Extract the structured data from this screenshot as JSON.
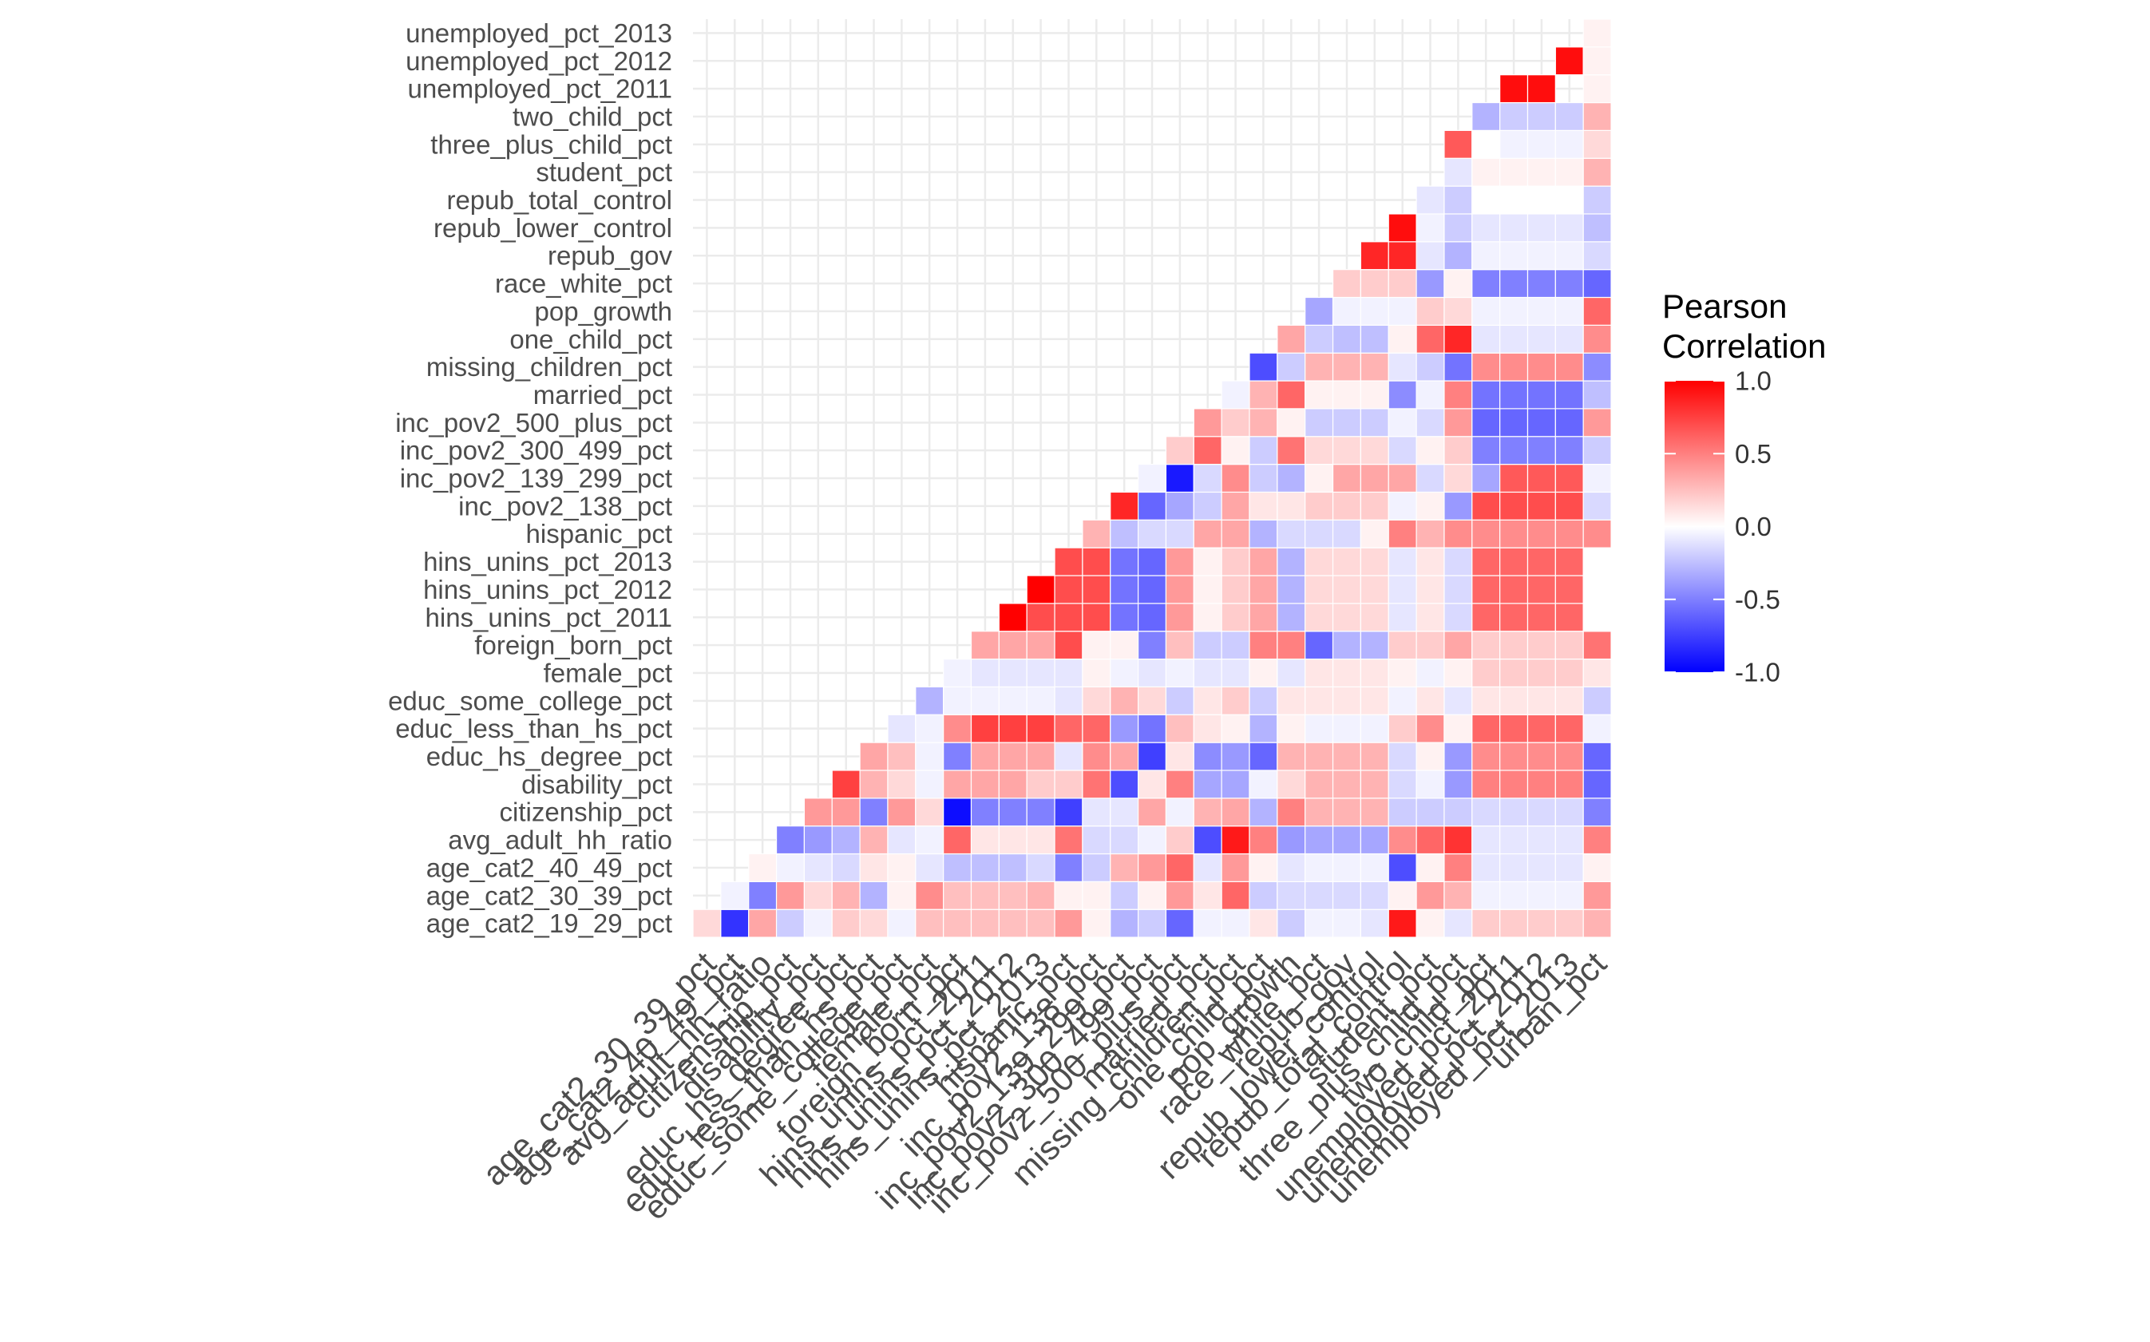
{
  "chart_data": {
    "type": "heatmap",
    "title": "",
    "xlabel": "",
    "ylabel": "",
    "triangle": "lower",
    "x_categories": [
      "age_cat2_30_39_pct",
      "age_cat2_40_49_pct",
      "avg_adult_hh_ratio",
      "citizenship_pct",
      "disability_pct",
      "educ_hs_degree_pct",
      "educ_less_than_hs_pct",
      "educ_some_college_pct",
      "female_pct",
      "foreign_born_pct",
      "hins_unins_pct_2011",
      "hins_unins_pct_2012",
      "hins_unins_pct_2013",
      "hispanic_pct",
      "inc_pov2_138_pct",
      "inc_pov2_139_299_pct",
      "inc_pov2_300_499_pct",
      "inc_pov2_500_plus_pct",
      "married_pct",
      "missing_children_pct",
      "one_child_pct",
      "pop_growth",
      "race_white_pct",
      "repub_gov",
      "repub_lower_control",
      "repub_total_control",
      "student_pct",
      "three_plus_child_pct",
      "two_child_pct",
      "unemployed_pct_2011",
      "unemployed_pct_2012",
      "unemployed_pct_2013",
      "urban_pct"
    ],
    "y_categories": [
      "age_cat2_19_29_pct",
      "age_cat2_30_39_pct",
      "age_cat2_40_49_pct",
      "avg_adult_hh_ratio",
      "citizenship_pct",
      "disability_pct",
      "educ_hs_degree_pct",
      "educ_less_than_hs_pct",
      "educ_some_college_pct",
      "female_pct",
      "foreign_born_pct",
      "hins_unins_pct_2011",
      "hins_unins_pct_2012",
      "hins_unins_pct_2013",
      "hispanic_pct",
      "inc_pov2_138_pct",
      "inc_pov2_139_299_pct",
      "inc_pov2_300_499_pct",
      "inc_pov2_500_plus_pct",
      "married_pct",
      "missing_children_pct",
      "one_child_pct",
      "pop_growth",
      "race_white_pct",
      "repub_gov",
      "repub_lower_control",
      "repub_total_control",
      "student_pct",
      "three_plus_child_pct",
      "two_child_pct",
      "unemployed_pct_2011",
      "unemployed_pct_2012",
      "unemployed_pct_2013"
    ],
    "values": [
      [
        0.15,
        -0.8,
        0.35,
        -0.2,
        -0.05,
        0.2,
        0.15,
        -0.05,
        0.25,
        0.25,
        0.25,
        0.25,
        0.25,
        0.4,
        0.05,
        -0.3,
        -0.2,
        -0.6,
        -0.05,
        -0.05,
        0.1,
        -0.2,
        -0.05,
        -0.05,
        -0.1,
        0.9,
        0.05,
        -0.1,
        0.2,
        0.2,
        0.2,
        0.2,
        0.3
      ],
      [
        null,
        -0.05,
        -0.5,
        0.4,
        0.15,
        0.3,
        -0.3,
        0.05,
        0.45,
        0.25,
        0.25,
        0.25,
        0.3,
        0.05,
        0.05,
        -0.2,
        0.05,
        0.4,
        0.1,
        0.6,
        -0.2,
        -0.15,
        -0.15,
        -0.15,
        -0.15,
        0.05,
        0.4,
        0.3,
        -0.05,
        -0.05,
        -0.05,
        -0.05,
        0.4
      ],
      [
        null,
        null,
        0.05,
        -0.05,
        -0.1,
        -0.15,
        0.1,
        0.05,
        -0.1,
        -0.25,
        -0.25,
        -0.25,
        -0.15,
        -0.5,
        -0.2,
        0.3,
        0.4,
        0.6,
        -0.1,
        0.4,
        0.05,
        -0.1,
        -0.05,
        -0.05,
        -0.05,
        -0.7,
        0.05,
        0.5,
        -0.1,
        -0.1,
        -0.1,
        -0.1,
        0.05
      ],
      [
        null,
        null,
        null,
        -0.5,
        -0.4,
        -0.3,
        0.3,
        -0.1,
        -0.05,
        0.6,
        0.1,
        0.1,
        0.1,
        0.55,
        -0.15,
        -0.15,
        -0.05,
        0.2,
        -0.7,
        0.9,
        0.5,
        -0.4,
        -0.35,
        -0.35,
        -0.35,
        0.45,
        0.6,
        0.8,
        -0.1,
        -0.1,
        -0.1,
        -0.1,
        0.5
      ],
      [
        null,
        null,
        null,
        null,
        0.4,
        0.4,
        -0.5,
        0.4,
        0.15,
        -0.95,
        -0.5,
        -0.5,
        -0.5,
        -0.75,
        -0.1,
        -0.1,
        0.35,
        -0.05,
        0.3,
        0.35,
        -0.3,
        0.5,
        0.3,
        0.3,
        0.3,
        -0.2,
        -0.2,
        -0.2,
        -0.15,
        -0.15,
        -0.15,
        -0.15,
        -0.5
      ],
      [
        null,
        null,
        null,
        null,
        null,
        0.75,
        0.3,
        0.15,
        -0.05,
        0.35,
        0.35,
        0.35,
        0.2,
        0.2,
        0.55,
        -0.7,
        0.1,
        0.5,
        -0.35,
        -0.35,
        -0.05,
        0.15,
        0.3,
        0.3,
        0.3,
        -0.15,
        -0.05,
        -0.4,
        0.5,
        0.5,
        0.5,
        0.5,
        -0.6
      ],
      [
        null,
        null,
        null,
        null,
        null,
        null,
        0.35,
        0.25,
        -0.05,
        -0.5,
        0.35,
        0.35,
        0.35,
        -0.1,
        0.45,
        0.35,
        -0.75,
        0.1,
        -0.45,
        -0.4,
        -0.6,
        0.3,
        0.3,
        0.3,
        0.3,
        -0.15,
        0.05,
        -0.4,
        0.45,
        0.45,
        0.45,
        0.45,
        -0.6
      ],
      [
        null,
        null,
        null,
        null,
        null,
        null,
        null,
        -0.1,
        -0.05,
        0.45,
        0.75,
        0.75,
        0.75,
        0.6,
        0.6,
        -0.4,
        -0.55,
        0.25,
        0.1,
        0.05,
        -0.3,
        0.05,
        -0.05,
        -0.05,
        -0.05,
        0.2,
        0.45,
        0.05,
        0.6,
        0.6,
        0.6,
        0.6,
        -0.05
      ],
      [
        null,
        null,
        null,
        null,
        null,
        null,
        null,
        null,
        -0.3,
        -0.05,
        -0.05,
        -0.05,
        -0.05,
        -0.1,
        0.15,
        0.3,
        0.15,
        -0.2,
        0.1,
        0.2,
        -0.2,
        0.1,
        0.1,
        0.1,
        0.1,
        -0.05,
        0.1,
        -0.1,
        0.1,
        0.1,
        0.1,
        0.1,
        -0.2
      ],
      [
        null,
        null,
        null,
        null,
        null,
        null,
        null,
        null,
        null,
        -0.05,
        -0.1,
        -0.1,
        -0.1,
        -0.1,
        0.05,
        -0.05,
        -0.1,
        -0.05,
        -0.1,
        -0.1,
        0.05,
        -0.1,
        0.1,
        0.1,
        0.1,
        0.05,
        -0.05,
        0.05,
        0.2,
        0.2,
        0.2,
        0.2,
        0.1
      ],
      [
        null,
        null,
        null,
        null,
        null,
        null,
        null,
        null,
        null,
        null,
        0.35,
        0.35,
        0.35,
        0.7,
        0.05,
        0.05,
        -0.5,
        0.25,
        -0.2,
        -0.2,
        0.5,
        0.5,
        -0.6,
        -0.3,
        -0.3,
        0.2,
        0.2,
        0.35,
        0.2,
        0.2,
        0.2,
        0.2,
        0.55
      ],
      [
        null,
        null,
        null,
        null,
        null,
        null,
        null,
        null,
        null,
        null,
        null,
        1.0,
        0.7,
        0.7,
        0.7,
        -0.55,
        -0.6,
        0.4,
        0.05,
        0.2,
        0.35,
        -0.3,
        0.15,
        0.15,
        0.15,
        -0.1,
        0.1,
        -0.15,
        0.6,
        0.6,
        0.6,
        0.6,
        0.0
      ],
      [
        null,
        null,
        null,
        null,
        null,
        null,
        null,
        null,
        null,
        null,
        null,
        null,
        1.0,
        0.7,
        0.7,
        -0.55,
        -0.6,
        0.4,
        0.05,
        0.2,
        0.35,
        -0.3,
        0.15,
        0.15,
        0.15,
        -0.1,
        0.1,
        -0.15,
        0.6,
        0.6,
        0.6,
        0.6,
        0.0
      ],
      [
        null,
        null,
        null,
        null,
        null,
        null,
        null,
        null,
        null,
        null,
        null,
        null,
        null,
        0.7,
        0.7,
        -0.55,
        -0.6,
        0.4,
        0.05,
        0.2,
        0.35,
        -0.3,
        0.15,
        0.15,
        0.15,
        -0.1,
        0.1,
        -0.15,
        0.6,
        0.6,
        0.6,
        0.6,
        0.0
      ],
      [
        null,
        null,
        null,
        null,
        null,
        null,
        null,
        null,
        null,
        null,
        null,
        null,
        null,
        null,
        0.3,
        -0.25,
        -0.15,
        -0.15,
        0.35,
        0.35,
        -0.3,
        -0.15,
        -0.15,
        -0.15,
        0.05,
        0.5,
        0.3,
        0.45,
        0.45,
        0.45,
        0.45,
        0.45,
        0.45
      ],
      [
        null,
        null,
        null,
        null,
        null,
        null,
        null,
        null,
        null,
        null,
        null,
        null,
        null,
        null,
        null,
        0.85,
        -0.6,
        -0.35,
        -0.2,
        0.35,
        0.1,
        0.1,
        0.2,
        0.2,
        0.2,
        -0.05,
        0.05,
        -0.4,
        0.7,
        0.7,
        0.7,
        0.7,
        -0.15
      ],
      [
        null,
        null,
        null,
        null,
        null,
        null,
        null,
        null,
        null,
        null,
        null,
        null,
        null,
        null,
        null,
        null,
        -0.05,
        -0.9,
        -0.15,
        0.45,
        -0.2,
        -0.3,
        0.05,
        0.35,
        0.35,
        0.35,
        -0.15,
        0.15,
        -0.35,
        0.65,
        0.65,
        0.65,
        -0.05
      ],
      [
        null,
        null,
        null,
        null,
        null,
        null,
        null,
        null,
        null,
        null,
        null,
        null,
        null,
        null,
        null,
        null,
        null,
        0.2,
        0.6,
        0.05,
        -0.2,
        0.55,
        0.15,
        0.15,
        0.15,
        -0.15,
        0.05,
        0.2,
        -0.5,
        -0.5,
        -0.5,
        -0.5,
        -0.2
      ],
      [
        null,
        null,
        null,
        null,
        null,
        null,
        null,
        null,
        null,
        null,
        null,
        null,
        null,
        null,
        null,
        null,
        null,
        null,
        0.4,
        0.2,
        0.3,
        0.05,
        -0.2,
        -0.2,
        -0.2,
        -0.05,
        -0.15,
        0.4,
        -0.6,
        -0.6,
        -0.6,
        -0.6,
        0.4
      ],
      [
        null,
        null,
        null,
        null,
        null,
        null,
        null,
        null,
        null,
        null,
        null,
        null,
        null,
        null,
        null,
        null,
        null,
        null,
        null,
        -0.05,
        0.3,
        0.6,
        0.05,
        0.05,
        0.05,
        -0.45,
        -0.05,
        0.5,
        -0.55,
        -0.55,
        -0.55,
        -0.55,
        -0.25
      ],
      [
        null,
        null,
        null,
        null,
        null,
        null,
        null,
        null,
        null,
        null,
        null,
        null,
        null,
        null,
        null,
        null,
        null,
        null,
        null,
        null,
        -0.7,
        -0.2,
        0.3,
        0.3,
        0.3,
        -0.1,
        -0.2,
        -0.55,
        0.45,
        0.45,
        0.45,
        0.45,
        -0.45
      ],
      [
        null,
        null,
        null,
        null,
        null,
        null,
        null,
        null,
        null,
        null,
        null,
        null,
        null,
        null,
        null,
        null,
        null,
        null,
        null,
        null,
        null,
        0.35,
        -0.2,
        -0.25,
        -0.25,
        0.05,
        0.6,
        0.85,
        -0.1,
        -0.1,
        -0.1,
        -0.1,
        0.45
      ],
      [
        null,
        null,
        null,
        null,
        null,
        null,
        null,
        null,
        null,
        null,
        null,
        null,
        null,
        null,
        null,
        null,
        null,
        null,
        null,
        null,
        null,
        null,
        -0.35,
        -0.05,
        -0.05,
        -0.05,
        0.2,
        0.15,
        -0.05,
        -0.05,
        -0.05,
        -0.05,
        0.6
      ],
      [
        null,
        null,
        null,
        null,
        null,
        null,
        null,
        null,
        null,
        null,
        null,
        null,
        null,
        null,
        null,
        null,
        null,
        null,
        null,
        null,
        null,
        null,
        null,
        0.2,
        0.2,
        0.2,
        -0.4,
        0.05,
        -0.5,
        -0.5,
        -0.5,
        -0.5,
        -0.6
      ],
      [
        null,
        null,
        null,
        null,
        null,
        null,
        null,
        null,
        null,
        null,
        null,
        null,
        null,
        null,
        null,
        null,
        null,
        null,
        null,
        null,
        null,
        null,
        null,
        null,
        0.85,
        0.85,
        -0.1,
        -0.3,
        -0.05,
        -0.05,
        -0.05,
        -0.05,
        -0.15
      ],
      [
        null,
        null,
        null,
        null,
        null,
        null,
        null,
        null,
        null,
        null,
        null,
        null,
        null,
        null,
        null,
        null,
        null,
        null,
        null,
        null,
        null,
        null,
        null,
        null,
        null,
        0.95,
        -0.05,
        -0.2,
        -0.1,
        -0.1,
        -0.1,
        -0.1,
        -0.25
      ],
      [
        null,
        null,
        null,
        null,
        null,
        null,
        null,
        null,
        null,
        null,
        null,
        null,
        null,
        null,
        null,
        null,
        null,
        null,
        null,
        null,
        null,
        null,
        null,
        null,
        null,
        null,
        -0.1,
        -0.2,
        0.0,
        0.0,
        0.0,
        0.0,
        -0.2
      ],
      [
        null,
        null,
        null,
        null,
        null,
        null,
        null,
        null,
        null,
        null,
        null,
        null,
        null,
        null,
        null,
        null,
        null,
        null,
        null,
        null,
        null,
        null,
        null,
        null,
        null,
        null,
        null,
        -0.1,
        0.05,
        0.05,
        0.05,
        0.05,
        0.3
      ],
      [
        null,
        null,
        null,
        null,
        null,
        null,
        null,
        null,
        null,
        null,
        null,
        null,
        null,
        null,
        null,
        null,
        null,
        null,
        null,
        null,
        null,
        null,
        null,
        null,
        null,
        null,
        null,
        0.65,
        0.0,
        -0.05,
        -0.05,
        -0.05,
        0.15
      ],
      [
        null,
        null,
        null,
        null,
        null,
        null,
        null,
        null,
        null,
        null,
        null,
        null,
        null,
        null,
        null,
        null,
        null,
        null,
        null,
        null,
        null,
        null,
        null,
        null,
        null,
        null,
        null,
        null,
        -0.3,
        -0.2,
        -0.2,
        -0.2,
        0.3
      ],
      [
        null,
        null,
        null,
        null,
        null,
        null,
        null,
        null,
        null,
        null,
        null,
        null,
        null,
        null,
        null,
        null,
        null,
        null,
        null,
        null,
        null,
        null,
        null,
        null,
        null,
        null,
        null,
        null,
        null,
        0.95,
        0.95,
        null,
        0.05
      ],
      [
        null,
        null,
        null,
        null,
        null,
        null,
        null,
        null,
        null,
        null,
        null,
        null,
        null,
        null,
        null,
        null,
        null,
        null,
        null,
        null,
        null,
        null,
        null,
        null,
        null,
        null,
        null,
        null,
        null,
        null,
        null,
        0.95,
        0.05
      ],
      [
        null,
        null,
        null,
        null,
        null,
        null,
        null,
        null,
        null,
        null,
        null,
        null,
        null,
        null,
        null,
        null,
        null,
        null,
        null,
        null,
        null,
        null,
        null,
        null,
        null,
        null,
        null,
        null,
        null,
        null,
        null,
        null,
        0.05
      ]
    ],
    "color_scale": {
      "low": "#0000ff",
      "mid": "#ffffff",
      "high": "#ff0000",
      "limits": [
        -1.0,
        1.0
      ]
    },
    "legend": {
      "title": [
        "Pearson",
        "Correlation"
      ],
      "ticks": [
        "1.0",
        "0.5",
        "0.0",
        "-0.5",
        "-1.0"
      ],
      "placement": "right"
    },
    "grid": true,
    "panel_grid_color": "#ebebeb"
  }
}
